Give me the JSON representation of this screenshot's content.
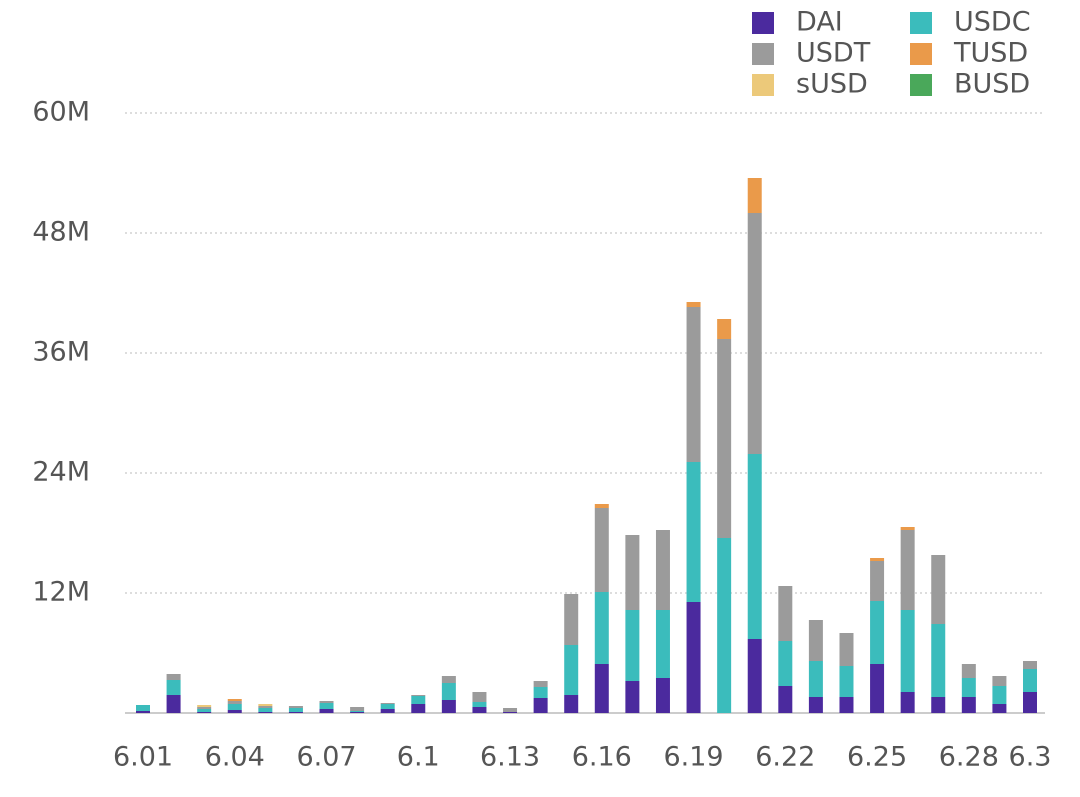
{
  "chart_data": {
    "type": "stacked_bar",
    "categories": [
      "6.01",
      null,
      null,
      "6.04",
      null,
      null,
      "6.07",
      null,
      null,
      "6.1",
      null,
      null,
      "6.13",
      null,
      null,
      "6.16",
      null,
      null,
      "6.19",
      null,
      null,
      "6.22",
      null,
      null,
      "6.25",
      null,
      null,
      "6.28",
      null,
      "6.3"
    ],
    "series": [
      {
        "name": "DAI",
        "color": "#4b2a9e",
        "values": [
          0.2,
          1.8,
          0.1,
          0.3,
          0.1,
          0.1,
          0.4,
          0.1,
          0.4,
          0.9,
          1.3,
          0.6,
          0.1,
          1.5,
          1.8,
          4.9,
          3.2,
          3.5,
          11.1,
          0,
          7.4,
          2.7,
          1.6,
          1.6,
          4.9,
          2.1,
          1.6,
          1.6,
          0.9,
          2.1
        ]
      },
      {
        "name": "USDC",
        "color": "#3bbcbc",
        "values": [
          0.6,
          1.5,
          0.3,
          0.6,
          0.4,
          0.4,
          0.6,
          0.1,
          0.5,
          0.8,
          1.7,
          0.5,
          0,
          1.1,
          5.0,
          7.2,
          7.1,
          6.8,
          14.0,
          17.5,
          18.5,
          4.5,
          3.6,
          3.1,
          6.3,
          8.2,
          7.3,
          1.9,
          1.8,
          2.3
        ]
      },
      {
        "name": "USDT",
        "color": "#9b9b9b",
        "values": [
          0,
          0.6,
          0.2,
          0.3,
          0.2,
          0.2,
          0.2,
          0.4,
          0.1,
          0.1,
          0.7,
          1.0,
          0.4,
          0.6,
          5.1,
          8.4,
          7.5,
          8.0,
          15.5,
          19.9,
          24.1,
          5.5,
          4.1,
          3.3,
          4.0,
          8.0,
          6.9,
          1.4,
          1.0,
          0.8
        ]
      },
      {
        "name": "TUSD",
        "color": "#ea9a4a",
        "values": [
          0,
          0,
          0,
          0.2,
          0,
          0,
          0,
          0,
          0,
          0,
          0,
          0,
          0,
          0,
          0,
          0.4,
          0,
          0,
          0.5,
          2.0,
          3.5,
          0,
          0,
          0,
          0.3,
          0.3,
          0,
          0,
          0,
          0
        ]
      },
      {
        "name": "sUSD",
        "color": "#ecc97a",
        "values": [
          0,
          0,
          0.2,
          0,
          0.2,
          0,
          0,
          0,
          0,
          0,
          0,
          0,
          0,
          0,
          0,
          0,
          0,
          0,
          0,
          0,
          0,
          0,
          0,
          0,
          0,
          0,
          0,
          0,
          0,
          0
        ]
      },
      {
        "name": "BUSD",
        "color": "#4aa85a",
        "values": [
          0,
          0,
          0,
          0,
          0,
          0,
          0,
          0,
          0,
          0,
          0,
          0,
          0,
          0,
          0,
          0,
          0,
          0,
          0,
          0,
          0,
          0,
          0,
          0,
          0,
          0,
          0,
          0,
          0,
          0
        ]
      }
    ],
    "ylim": [
      0,
      60
    ],
    "yticks": [
      {
        "value": 12,
        "label": "12M"
      },
      {
        "value": 24,
        "label": "24M"
      },
      {
        "value": 36,
        "label": "36M"
      },
      {
        "value": 48,
        "label": "48M"
      },
      {
        "value": 60,
        "label": "60M"
      }
    ],
    "grid": true
  }
}
